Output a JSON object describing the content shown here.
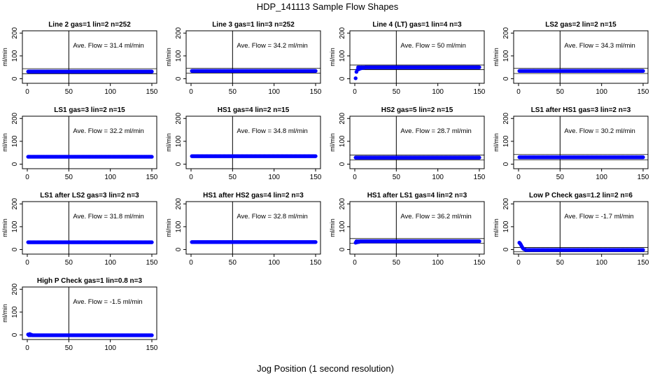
{
  "figure": {
    "title": "HDP_141113  Sample Flow Shapes",
    "xlabel": "Jog Position (1 second resolution)"
  },
  "colors": {
    "points": "#0000ff",
    "axes": "#000000"
  },
  "chart_data": [
    {
      "type": "scatter",
      "title": "Line 2 gas=1 lin=2 n=252",
      "ylabel": "ml/min",
      "xlim": [
        0,
        150
      ],
      "ylim": [
        -20,
        210
      ],
      "xticks": [
        "0",
        "50",
        "100",
        "150"
      ],
      "yticks": [
        "0",
        "100",
        "200"
      ],
      "vline": 50,
      "hlines": [
        44,
        22
      ],
      "annotation": "Ave. Flow =  31.4  ml/min",
      "series": [
        {
          "shape": "flat",
          "start": 1,
          "end": 150,
          "level": 31.4
        }
      ]
    },
    {
      "type": "scatter",
      "title": "Line 3 gas=1 lin=3 n=252",
      "ylabel": "ml/min",
      "xlim": [
        0,
        150
      ],
      "ylim": [
        -20,
        210
      ],
      "xticks": [
        "0",
        "50",
        "100",
        "150"
      ],
      "yticks": [
        "0",
        "100",
        "200"
      ],
      "vline": 50,
      "hlines": [
        46,
        24
      ],
      "annotation": "Ave. Flow =  34.2  ml/min",
      "series": [
        {
          "shape": "flat",
          "start": 1,
          "end": 150,
          "level": 34.2
        }
      ]
    },
    {
      "type": "scatter",
      "title": "Line 4 (LT) gas=1 lin=4 n=3",
      "ylabel": "ml/min",
      "xlim": [
        0,
        150
      ],
      "ylim": [
        -20,
        210
      ],
      "xticks": [
        "0",
        "50",
        "100",
        "150"
      ],
      "yticks": [
        "0",
        "100",
        "200"
      ],
      "vline": 50,
      "hlines": [
        60,
        40
      ],
      "annotation": "Ave. Flow =  50  ml/min",
      "series": [
        {
          "shape": "rise",
          "start": 1,
          "end": 150,
          "level": 50,
          "initial": [
            [
              1,
              2
            ],
            [
              2,
              30
            ],
            [
              3,
              38
            ],
            [
              5,
              42
            ],
            [
              7,
              45
            ],
            [
              9,
              47
            ],
            [
              11,
              48
            ]
          ]
        }
      ]
    },
    {
      "type": "scatter",
      "title": "LS2 gas=2 lin=2 n=15",
      "ylabel": "ml/min",
      "xlim": [
        0,
        150
      ],
      "ylim": [
        -20,
        210
      ],
      "xticks": [
        "0",
        "50",
        "100",
        "150"
      ],
      "yticks": [
        "0",
        "100",
        "200"
      ],
      "vline": 50,
      "hlines": [
        46,
        23
      ],
      "annotation": "Ave. Flow =  34.3  ml/min",
      "series": [
        {
          "shape": "flat",
          "start": 1,
          "end": 150,
          "level": 34.3
        }
      ]
    },
    {
      "type": "scatter",
      "title": "LS1 gas=3 lin=2 n=15",
      "ylabel": "ml/min",
      "xlim": [
        0,
        150
      ],
      "ylim": [
        -20,
        210
      ],
      "xticks": [
        "0",
        "50",
        "100",
        "150"
      ],
      "yticks": [
        "0",
        "100",
        "200"
      ],
      "vline": 50,
      "hlines": [],
      "annotation": "Ave. Flow =  32.2  ml/min",
      "series": [
        {
          "shape": "flat",
          "start": 1,
          "end": 150,
          "level": 32.2
        }
      ]
    },
    {
      "type": "scatter",
      "title": "HS1 gas=4 lin=2 n=15",
      "ylabel": "ml/min",
      "xlim": [
        0,
        150
      ],
      "ylim": [
        -20,
        210
      ],
      "xticks": [
        "0",
        "50",
        "100",
        "150"
      ],
      "yticks": [
        "0",
        "100",
        "200"
      ],
      "vline": 50,
      "hlines": [],
      "annotation": "Ave. Flow =  34.8  ml/min",
      "series": [
        {
          "shape": "flat",
          "start": 1,
          "end": 150,
          "level": 34.8
        }
      ]
    },
    {
      "type": "scatter",
      "title": "HS2 gas=5 lin=2 n=15",
      "ylabel": "ml/min",
      "xlim": [
        0,
        150
      ],
      "ylim": [
        -20,
        210
      ],
      "xticks": [
        "0",
        "50",
        "100",
        "150"
      ],
      "yticks": [
        "0",
        "100",
        "200"
      ],
      "vline": 50,
      "hlines": [
        40,
        18
      ],
      "annotation": "Ave. Flow =  28.7  ml/min",
      "series": [
        {
          "shape": "flat",
          "start": 1,
          "end": 150,
          "level": 28.7
        }
      ]
    },
    {
      "type": "scatter",
      "title": "LS1 after HS1 gas=3 lin=2 n=3",
      "ylabel": "ml/min",
      "xlim": [
        0,
        150
      ],
      "ylim": [
        -20,
        210
      ],
      "xticks": [
        "0",
        "50",
        "100",
        "150"
      ],
      "yticks": [
        "0",
        "100",
        "200"
      ],
      "vline": 50,
      "hlines": [
        42,
        19
      ],
      "annotation": "Ave. Flow =  30.2  ml/min",
      "series": [
        {
          "shape": "flat",
          "start": 1,
          "end": 150,
          "level": 30.2
        }
      ]
    },
    {
      "type": "scatter",
      "title": "LS1 after LS2 gas=3 lin=2 n=3",
      "ylabel": "ml/min",
      "xlim": [
        0,
        150
      ],
      "ylim": [
        -20,
        210
      ],
      "xticks": [
        "0",
        "50",
        "100",
        "150"
      ],
      "yticks": [
        "0",
        "100",
        "200"
      ],
      "vline": 50,
      "hlines": [],
      "annotation": "Ave. Flow =  31.8  ml/min",
      "series": [
        {
          "shape": "flat",
          "start": 1,
          "end": 150,
          "level": 31.8
        }
      ]
    },
    {
      "type": "scatter",
      "title": "HS1 after HS2 gas=4 lin=2 n=3",
      "ylabel": "ml/min",
      "xlim": [
        0,
        150
      ],
      "ylim": [
        -20,
        210
      ],
      "xticks": [
        "0",
        "50",
        "100",
        "150"
      ],
      "yticks": [
        "0",
        "100",
        "200"
      ],
      "vline": 50,
      "hlines": [],
      "annotation": "Ave. Flow =  32.8  ml/min",
      "series": [
        {
          "shape": "flat",
          "start": 1,
          "end": 150,
          "level": 32.8
        }
      ]
    },
    {
      "type": "scatter",
      "title": "HS1 after LS1 gas=4 lin=2 n=3",
      "ylabel": "ml/min",
      "xlim": [
        0,
        150
      ],
      "ylim": [
        -20,
        210
      ],
      "xticks": [
        "0",
        "50",
        "100",
        "150"
      ],
      "yticks": [
        "0",
        "100",
        "200"
      ],
      "vline": 50,
      "hlines": [
        48,
        28
      ],
      "annotation": "Ave. Flow =  36.2  ml/min",
      "series": [
        {
          "shape": "flat",
          "start": 1,
          "end": 150,
          "level": 36.2,
          "initial": [
            [
              1,
              30
            ],
            [
              3,
              32
            ],
            [
              5,
              33
            ]
          ]
        }
      ]
    },
    {
      "type": "scatter",
      "title": "Low P Check gas=1.2 lin=2 n=6",
      "ylabel": "ml/min",
      "xlim": [
        0,
        150
      ],
      "ylim": [
        -20,
        210
      ],
      "xticks": [
        "0",
        "50",
        "100",
        "150"
      ],
      "yticks": [
        "0",
        "100",
        "200"
      ],
      "vline": 50,
      "hlines": [
        9,
        -10
      ],
      "annotation": "Ave. Flow =  -1.7  ml/min",
      "series": [
        {
          "shape": "decay",
          "start": 1,
          "end": 150,
          "level": -1.7,
          "initial": [
            [
              1,
              30
            ],
            [
              2,
              26
            ],
            [
              3,
              20
            ],
            [
              4,
              13
            ],
            [
              5,
              7
            ],
            [
              6,
              3
            ],
            [
              7,
              1
            ],
            [
              8,
              0
            ]
          ]
        }
      ]
    },
    {
      "type": "scatter",
      "title": "High P Check gas=1 lin=0.8 n=3",
      "ylabel": "ml/min",
      "xlim": [
        0,
        150
      ],
      "ylim": [
        -20,
        210
      ],
      "xticks": [
        "0",
        "50",
        "100",
        "150"
      ],
      "yticks": [
        "0",
        "100",
        "200"
      ],
      "vline": 50,
      "hlines": [],
      "annotation": "Ave. Flow =  -1.5  ml/min",
      "series": [
        {
          "shape": "flat",
          "start": 1,
          "end": 150,
          "level": -1.5,
          "initial": [
            [
              1,
              2
            ],
            [
              3,
              4
            ],
            [
              5,
              1
            ]
          ]
        }
      ]
    }
  ]
}
